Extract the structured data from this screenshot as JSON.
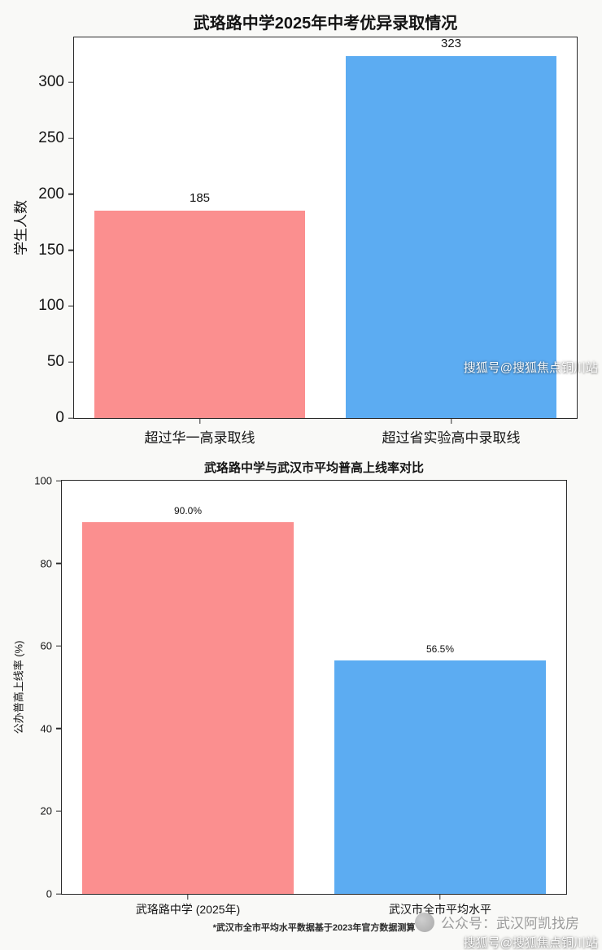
{
  "footnote": "*武汉市全市平均水平数据基于2023年官方数据测算",
  "watermarks": {
    "mid_sohu": "搜狐号@搜狐焦点铜川站",
    "bottom_sohu": "搜狐号@搜狐焦点铜川站",
    "bottom_account": "公众号：武汉阿凯找房"
  },
  "chart_data": [
    {
      "type": "bar",
      "title": "武珞路中学2025年中考优异录取情况",
      "categories": [
        "超过华一高录取线",
        "超过省实验高中录取线"
      ],
      "values": [
        185,
        323
      ],
      "value_labels": [
        "185",
        "323"
      ],
      "colors": [
        "#FB8F8F",
        "#5CACF2"
      ],
      "xlabel": "",
      "ylabel": "学生人数",
      "ylim": [
        0,
        340
      ],
      "yticks": [
        0,
        50,
        100,
        150,
        200,
        250,
        300
      ],
      "grid": false,
      "legend": "none"
    },
    {
      "type": "bar",
      "title": "武珞路中学与武汉市平均普高上线率对比",
      "categories": [
        "武珞路中学 (2025年)",
        "武汉市全市平均水平"
      ],
      "values": [
        90.0,
        56.5
      ],
      "value_labels": [
        "90.0%",
        "56.5%"
      ],
      "colors": [
        "#FB8F8F",
        "#5CACF2"
      ],
      "xlabel": "",
      "ylabel": "公办普高上线率 (%)",
      "ylim": [
        0,
        100
      ],
      "yticks": [
        0,
        20,
        40,
        60,
        80,
        100
      ],
      "grid": false,
      "legend": "none"
    }
  ]
}
